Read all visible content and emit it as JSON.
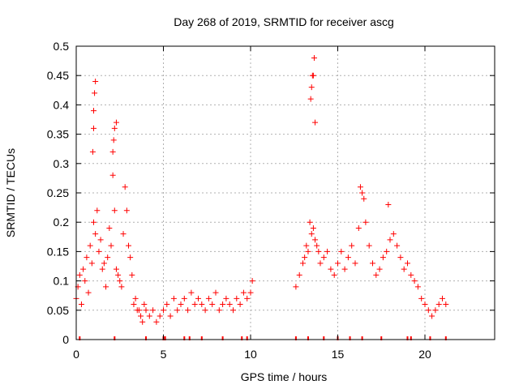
{
  "chart_data": {
    "type": "scatter",
    "title": "Day 268 of 2019, SRMTID for receiver ascg",
    "xlabel": "GPS time / hours",
    "ylabel": "SRMTID / TECUs",
    "xlim": [
      0,
      24
    ],
    "ylim": [
      0,
      0.5
    ],
    "x_ticks": [
      0,
      5,
      10,
      15,
      20
    ],
    "x_tick_labels": [
      "0",
      "5",
      "10",
      "15",
      "20"
    ],
    "y_ticks": [
      0,
      0.05,
      0.1,
      0.15,
      0.2,
      0.25,
      0.3,
      0.35,
      0.4,
      0.45,
      0.5
    ],
    "y_tick_labels": [
      "0",
      "0.05",
      "0.1",
      "0.15",
      "0.2",
      "0.25",
      "0.3",
      "0.35",
      "0.4",
      "0.45",
      "0.5"
    ],
    "grid": true,
    "marker": "+",
    "color": "#ff0000",
    "series": [
      {
        "name": "SRMTID",
        "x": [
          0.0,
          0.1,
          0.2,
          0.3,
          0.4,
          0.5,
          0.6,
          0.7,
          0.8,
          0.9,
          1.0,
          1.1,
          1.2,
          1.3,
          1.4,
          1.5,
          1.6,
          1.7,
          1.8,
          1.9,
          2.0,
          2.1,
          2.2,
          2.3,
          2.4,
          2.5,
          2.6,
          2.7,
          2.8,
          2.9,
          3.0,
          3.1,
          3.2,
          3.3,
          3.4,
          3.5,
          3.6,
          3.7,
          3.8,
          3.9,
          4.0,
          4.2,
          4.4,
          4.6,
          4.8,
          5.0,
          5.2,
          5.4,
          5.6,
          5.8,
          6.0,
          6.2,
          6.4,
          6.6,
          6.8,
          7.0,
          7.2,
          7.4,
          7.6,
          7.8,
          8.0,
          8.2,
          8.4,
          8.6,
          8.8,
          9.0,
          9.2,
          9.4,
          9.6,
          9.8,
          10.0,
          10.1,
          0.95,
          1.0,
          1.0,
          1.05,
          1.1,
          2.1,
          2.15,
          2.2,
          2.3,
          12.6,
          12.8,
          13.0,
          13.1,
          13.2,
          13.3,
          13.4,
          13.5,
          13.6,
          13.7,
          13.8,
          13.9,
          14.0,
          14.2,
          14.4,
          14.6,
          14.8,
          15.0,
          15.2,
          15.4,
          15.6,
          15.8,
          16.0,
          16.2,
          16.4,
          16.6,
          16.8,
          17.0,
          17.2,
          17.4,
          17.6,
          17.8,
          18.0,
          18.2,
          18.4,
          18.6,
          18.8,
          19.0,
          19.2,
          19.4,
          19.6,
          19.8,
          20.0,
          20.2,
          20.4,
          20.6,
          20.8,
          21.0,
          21.2,
          13.45,
          13.5,
          13.55,
          13.6,
          13.65,
          13.7,
          16.3,
          16.5,
          17.9
        ],
        "y": [
          0.07,
          0.09,
          0.11,
          0.06,
          0.12,
          0.1,
          0.14,
          0.08,
          0.16,
          0.13,
          0.2,
          0.18,
          0.22,
          0.15,
          0.17,
          0.12,
          0.13,
          0.09,
          0.14,
          0.19,
          0.16,
          0.28,
          0.22,
          0.12,
          0.11,
          0.1,
          0.09,
          0.18,
          0.26,
          0.22,
          0.16,
          0.14,
          0.11,
          0.06,
          0.07,
          0.05,
          0.05,
          0.04,
          0.03,
          0.06,
          0.05,
          0.04,
          0.05,
          0.03,
          0.04,
          0.05,
          0.06,
          0.04,
          0.07,
          0.05,
          0.06,
          0.07,
          0.05,
          0.08,
          0.06,
          0.07,
          0.06,
          0.05,
          0.07,
          0.06,
          0.08,
          0.05,
          0.06,
          0.07,
          0.06,
          0.05,
          0.07,
          0.06,
          0.08,
          0.07,
          0.08,
          0.1,
          0.32,
          0.36,
          0.39,
          0.42,
          0.44,
          0.32,
          0.34,
          0.36,
          0.37,
          0.09,
          0.11,
          0.13,
          0.14,
          0.16,
          0.15,
          0.2,
          0.18,
          0.19,
          0.17,
          0.16,
          0.15,
          0.13,
          0.14,
          0.15,
          0.12,
          0.11,
          0.13,
          0.15,
          0.12,
          0.14,
          0.16,
          0.13,
          0.19,
          0.25,
          0.2,
          0.16,
          0.13,
          0.11,
          0.12,
          0.14,
          0.15,
          0.17,
          0.18,
          0.16,
          0.14,
          0.12,
          0.13,
          0.11,
          0.1,
          0.09,
          0.07,
          0.06,
          0.05,
          0.04,
          0.05,
          0.06,
          0.07,
          0.06,
          0.41,
          0.43,
          0.45,
          0.45,
          0.48,
          0.37,
          0.26,
          0.24,
          0.23
        ]
      }
    ],
    "gap_markers_x": [
      0.2,
      2.2,
      4.0,
      5.0,
      5.1,
      6.2,
      6.5,
      7.2,
      8.4,
      9.5,
      9.8,
      12.6,
      13.3,
      14.2,
      15.0,
      15.7,
      16.4,
      17.5,
      19.0,
      19.2,
      20.3,
      21.2
    ]
  }
}
